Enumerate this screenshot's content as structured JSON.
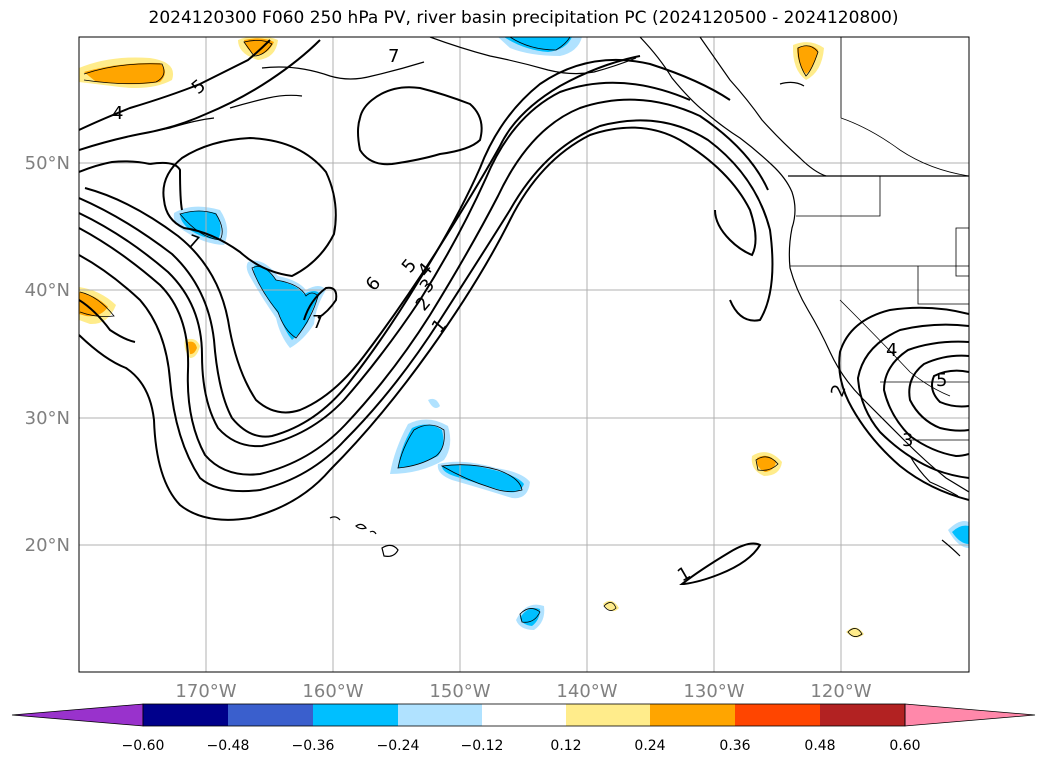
{
  "title": "2024120300 F060 250 hPa PV, river basin precipitation PC (2024120500 - 2024120800)",
  "map": {
    "lat_labels": [
      "50°N",
      "40°N",
      "30°N",
      "20°N"
    ],
    "lon_labels": [
      "170°W",
      "160°W",
      "150°W",
      "140°W",
      "130°W",
      "120°W"
    ],
    "contour_labels": [
      "4",
      "5",
      "7",
      "7",
      "7",
      "6",
      "5",
      "4",
      "3",
      "2",
      "1",
      "1",
      "4",
      "5",
      "2",
      "3"
    ],
    "label_color": "#808080",
    "grid": true
  },
  "colorbar": {
    "ticks": [
      "−0.60",
      "−0.48",
      "−0.36",
      "−0.24",
      "−0.12",
      "0.12",
      "0.24",
      "0.36",
      "0.48",
      "0.60"
    ],
    "colors": [
      "#9932cc",
      "#00008b",
      "#3a5fcd",
      "#00bfff",
      "#b0e2ff",
      "#ffffff",
      "#ffec8b",
      "#ffa500",
      "#ff4500",
      "#b22222",
      "#ff88aa"
    ]
  }
}
